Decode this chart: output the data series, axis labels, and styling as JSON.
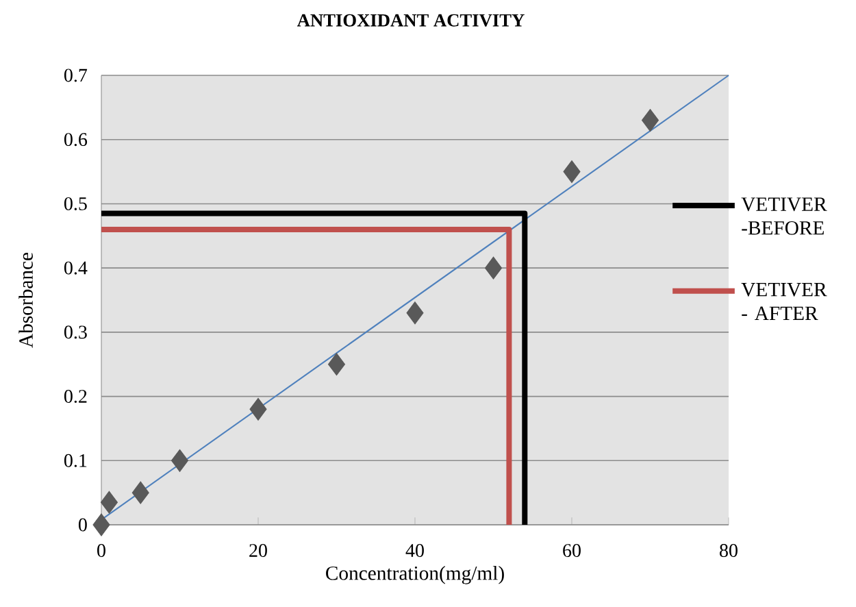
{
  "chart_data": {
    "type": "scatter",
    "title": "ANTIOXIDANT ACTIVITY",
    "xlabel": "Concentration(mg/ml)",
    "ylabel": "Absorbance",
    "xlim": [
      0,
      80
    ],
    "ylim": [
      0,
      0.7
    ],
    "xticks": [
      0,
      20,
      40,
      60,
      80
    ],
    "yticks": [
      0,
      0.1,
      0.2,
      0.3,
      0.4,
      0.5,
      0.6,
      0.7
    ],
    "grid": "y",
    "legend": "right",
    "series": [
      {
        "type": "line",
        "color": "#4f81bd",
        "marker": "none",
        "line_style": "solid",
        "x": [
          0,
          80
        ],
        "values": [
          0.008,
          0.7
        ]
      },
      {
        "type": "scatter",
        "color": "#595959",
        "marker": "diamond",
        "x": [
          0,
          1,
          5,
          10,
          20,
          30,
          40,
          50,
          60,
          70
        ],
        "values": [
          0,
          0.035,
          0.05,
          0.1,
          0.18,
          0.25,
          0.33,
          0.4,
          0.55,
          0.63
        ]
      },
      {
        "type": "line",
        "name": "VETIVER -BEFORE",
        "color": "#000000",
        "marker": "none",
        "line_style": "solid",
        "x": [
          0,
          54,
          54
        ],
        "values": [
          0.485,
          0.485,
          0
        ]
      },
      {
        "type": "line",
        "name": "VETIVER - AFTER",
        "color": "#c0504d",
        "marker": "none",
        "line_style": "solid",
        "x": [
          0,
          52,
          52
        ],
        "values": [
          0.46,
          0.46,
          0
        ]
      }
    ]
  }
}
